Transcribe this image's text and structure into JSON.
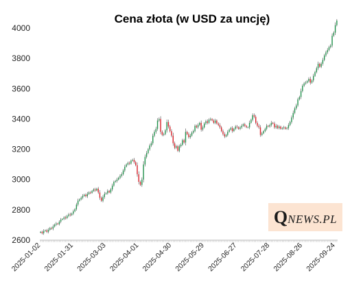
{
  "logo": {
    "big": "Q",
    "rest": "NEWS.PL"
  },
  "colors": {
    "up": "#1f8f4a",
    "down": "#d8212a",
    "axis": "#bdbdbd"
  },
  "chart_data": {
    "type": "candlestick",
    "title": "Cena złota (w USD za uncję)",
    "xlabel": "",
    "ylabel": "",
    "ylim": [
      2600,
      4050
    ],
    "yticks": [
      2600,
      2800,
      3000,
      3200,
      3400,
      3600,
      3800,
      4000
    ],
    "grid": false,
    "x_tick_labels": [
      "2025-01-02",
      "2025-01-31",
      "2025-03-03",
      "2025-04-01",
      "2025-04-30",
      "2025-05-29",
      "2025-06-27",
      "2025-07-28",
      "2025-08-26",
      "2025-09-24"
    ],
    "x_tick_index": [
      0,
      21,
      42,
      63,
      84,
      105,
      126,
      147,
      168,
      189
    ],
    "close": [
      2655,
      2645,
      2660,
      2665,
      2655,
      2668,
      2680,
      2676,
      2690,
      2702,
      2710,
      2705,
      2722,
      2735,
      2740,
      2750,
      2745,
      2760,
      2770,
      2766,
      2775,
      2790,
      2805,
      2835,
      2860,
      2870,
      2880,
      2892,
      2900,
      2890,
      2905,
      2915,
      2912,
      2925,
      2935,
      2928,
      2940,
      2915,
      2880,
      2860,
      2885,
      2905,
      2910,
      2925,
      2915,
      2935,
      2960,
      2985,
      2990,
      3000,
      3012,
      3025,
      3035,
      3060,
      3085,
      3100,
      3110,
      3105,
      3125,
      3130,
      3115,
      3095,
      3035,
      2985,
      2965,
      3000,
      3100,
      3150,
      3175,
      3200,
      3225,
      3240,
      3290,
      3315,
      3335,
      3390,
      3400,
      3315,
      3295,
      3300,
      3325,
      3380,
      3350,
      3320,
      3290,
      3240,
      3210,
      3220,
      3190,
      3220,
      3230,
      3260,
      3245,
      3315,
      3300,
      3280,
      3290,
      3310,
      3320,
      3355,
      3345,
      3360,
      3375,
      3330,
      3345,
      3370,
      3385,
      3375,
      3395,
      3400,
      3390,
      3375,
      3390,
      3370,
      3360,
      3345,
      3320,
      3300,
      3285,
      3295,
      3315,
      3330,
      3340,
      3320,
      3335,
      3350,
      3345,
      3335,
      3345,
      3355,
      3365,
      3355,
      3345,
      3345,
      3375,
      3395,
      3425,
      3415,
      3375,
      3355,
      3345,
      3295,
      3305,
      3320,
      3335,
      3355,
      3350,
      3360,
      3375,
      3370,
      3345,
      3355,
      3340,
      3350,
      3335,
      3340,
      3345,
      3335,
      3340,
      3360,
      3380,
      3410,
      3440,
      3470,
      3490,
      3530,
      3545,
      3585,
      3620,
      3635,
      3640,
      3650,
      3665,
      3640,
      3655,
      3685,
      3710,
      3735,
      3765,
      3745,
      3765,
      3790,
      3820,
      3840,
      3855,
      3875,
      3885,
      3950,
      3970,
      4020,
      4050
    ]
  }
}
